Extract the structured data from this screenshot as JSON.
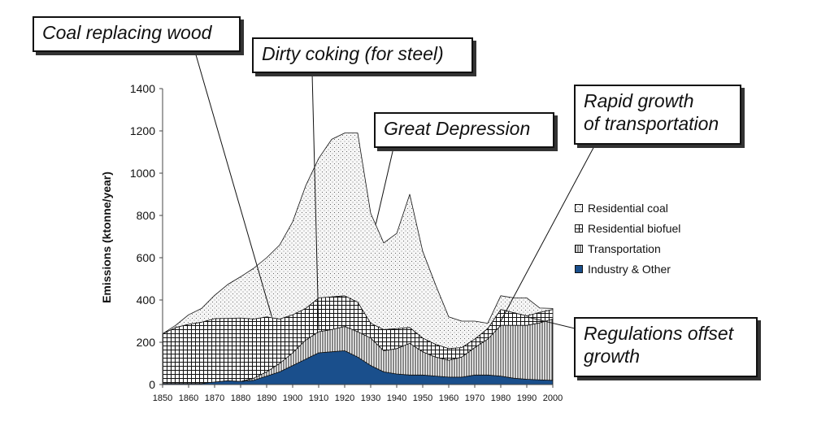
{
  "chart_data": {
    "type": "area",
    "stacked": true,
    "x": [
      1850,
      1855,
      1860,
      1865,
      1870,
      1875,
      1880,
      1885,
      1890,
      1895,
      1900,
      1905,
      1910,
      1915,
      1920,
      1925,
      1930,
      1935,
      1940,
      1945,
      1950,
      1955,
      1960,
      1965,
      1970,
      1975,
      1980,
      1985,
      1990,
      1995,
      2000
    ],
    "series": [
      {
        "name": "Industry & Other",
        "color": "#1a4f8c",
        "values": [
          5,
          5,
          5,
          5,
          12,
          18,
          15,
          20,
          40,
          60,
          90,
          120,
          150,
          155,
          160,
          130,
          90,
          60,
          50,
          45,
          45,
          40,
          35,
          35,
          45,
          45,
          40,
          30,
          25,
          22,
          20
        ]
      },
      {
        "name": "Transportation",
        "color": "#ffffff",
        "values": [
          0,
          0,
          0,
          0,
          0,
          0,
          0,
          10,
          20,
          40,
          60,
          90,
          100,
          105,
          115,
          120,
          130,
          100,
          120,
          150,
          110,
          90,
          80,
          95,
          130,
          170,
          240,
          250,
          255,
          270,
          290
        ]
      },
      {
        "name": "Residential biofuel",
        "color": "#ffffff",
        "values": [
          235,
          265,
          280,
          290,
          300,
          295,
          300,
          280,
          260,
          210,
          180,
          150,
          160,
          155,
          145,
          140,
          70,
          100,
          95,
          75,
          65,
          60,
          55,
          45,
          40,
          50,
          75,
          60,
          45,
          50,
          45
        ]
      },
      {
        "name": "Residential coal",
        "color": "#f4f4f4",
        "values": [
          0,
          10,
          45,
          65,
          110,
          160,
          195,
          240,
          280,
          350,
          440,
          580,
          660,
          745,
          770,
          800,
          520,
          410,
          450,
          630,
          410,
          280,
          150,
          125,
          85,
          25,
          65,
          70,
          85,
          20,
          5
        ]
      }
    ],
    "legend_order": [
      "Residential coal",
      "Residential biofuel",
      "Transportation",
      "Industry & Other"
    ],
    "ylabel": "Emissions (ktonne/year)",
    "xlim": [
      1850,
      2000
    ],
    "ylim": [
      0,
      1400
    ],
    "yticks": [
      0,
      200,
      400,
      600,
      800,
      1000,
      1200,
      1400
    ],
    "xticks": [
      1850,
      1860,
      1870,
      1880,
      1890,
      1900,
      1910,
      1920,
      1930,
      1940,
      1950,
      1960,
      1970,
      1980,
      1990,
      2000
    ],
    "grid": false,
    "legend_position": "right",
    "annotations": [
      {
        "id": "coal-replacing-wood",
        "lines": [
          "Coal replacing wood"
        ],
        "target_year": 1892,
        "target_value": 320
      },
      {
        "id": "dirty-coking",
        "lines": [
          "Dirty coking (for steel)"
        ],
        "target_year": 1910,
        "target_value": 260
      },
      {
        "id": "great-depression",
        "lines": [
          "Great Depression"
        ],
        "target_year": 1932,
        "target_value": 760
      },
      {
        "id": "rapid-growth-transportation",
        "lines": [
          "Rapid growth",
          "of transportation"
        ],
        "target_year": 1980,
        "target_value": 300
      },
      {
        "id": "regulations-offset-growth",
        "lines": [
          "Regulations offset",
          "growth"
        ],
        "target_year": 1990,
        "target_value": 320
      }
    ]
  }
}
